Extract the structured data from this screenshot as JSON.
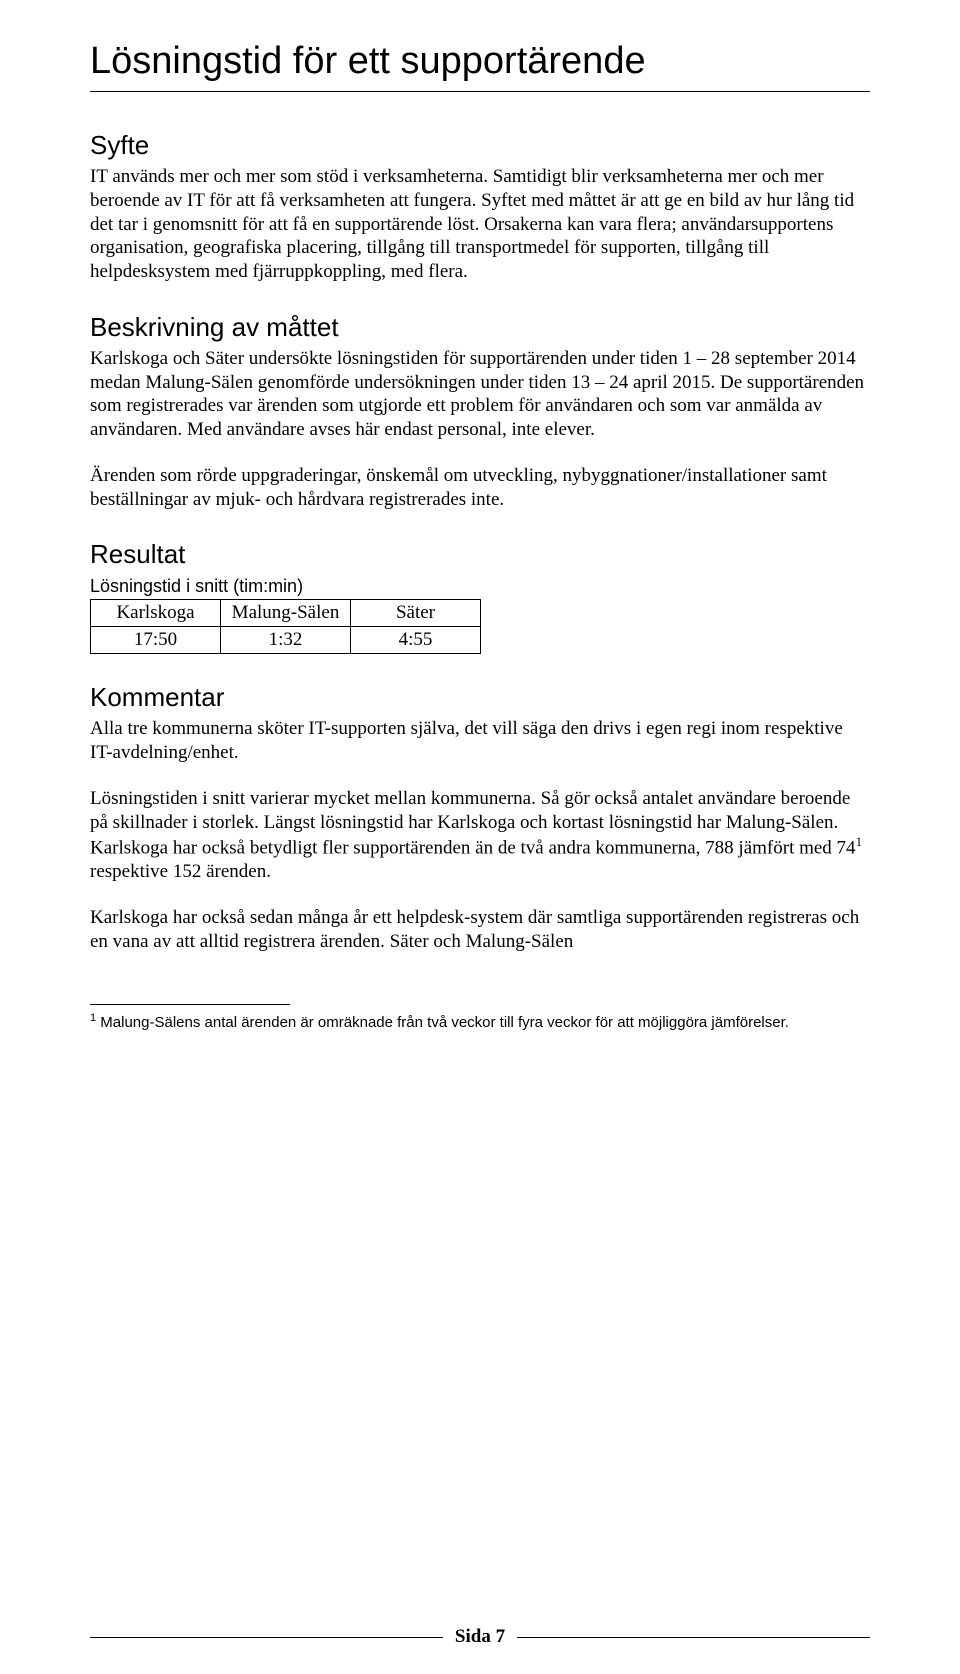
{
  "title": "Lösningstid för ett supportärende",
  "sections": {
    "syfte": {
      "heading": "Syfte",
      "p1": "IT används mer och mer som stöd i verksamheterna. Samtidigt blir verksamheterna mer och mer beroende av IT för att få verksamheten att fungera. Syftet med måttet är att ge en bild av hur lång tid det tar i genomsnitt för att få en supportärende löst. Orsakerna kan vara flera; användarsupportens organisation, geografiska placering, tillgång till transportmedel för supporten, tillgång till helpdesksystem med fjärruppkoppling, med flera."
    },
    "beskrivning": {
      "heading": "Beskrivning av måttet",
      "p1": "Karlskoga och Säter undersökte lösningstiden för supportärenden under tiden 1 – 28 september 2014 medan Malung-Sälen genomförde undersökningen under tiden 13 – 24 april 2015. De supportärenden som registrerades var ärenden som utgjorde ett problem för användaren och som var anmälda av användaren. Med användare avses här endast personal, inte elever.",
      "p2": "Ärenden som rörde uppgraderingar, önskemål om utveckling, nybyggnationer/installationer samt beställningar av mjuk- och hårdvara registrerades inte."
    },
    "resultat": {
      "heading": "Resultat",
      "table_caption": "Lösningstid i snitt (tim:min)",
      "headers": [
        "Karlskoga",
        "Malung-Sälen",
        "Säter"
      ],
      "values": [
        "17:50",
        "1:32",
        "4:55"
      ]
    },
    "kommentar": {
      "heading": "Kommentar",
      "p1": "Alla tre kommunerna sköter IT-supporten själva, det vill säga den drivs i egen regi inom respektive IT-avdelning/enhet.",
      "p2_a": "Lösningstiden i snitt varierar mycket mellan kommunerna. Så gör också antalet användare beroende på skillnader i storlek. Längst lösningstid har Karlskoga och kortast lösningstid har Malung-Sälen. Karlskoga har också betydligt fler supportärenden än de två andra kommunerna, 788 jämfört med 74",
      "p2_ref": "1",
      "p2_b": " respektive 152 ärenden.",
      "p3": "Karlskoga har också sedan många år ett helpdesk-system där samtliga supportärenden registreras och en vana av att alltid registrera ärenden. Säter och Malung-Sälen"
    }
  },
  "footnote": {
    "ref": "1",
    "text": " Malung-Sälens antal ärenden är omräknade från två veckor till fyra veckor för att möjliggöra jämförelser."
  },
  "footer": "Sida 7"
}
